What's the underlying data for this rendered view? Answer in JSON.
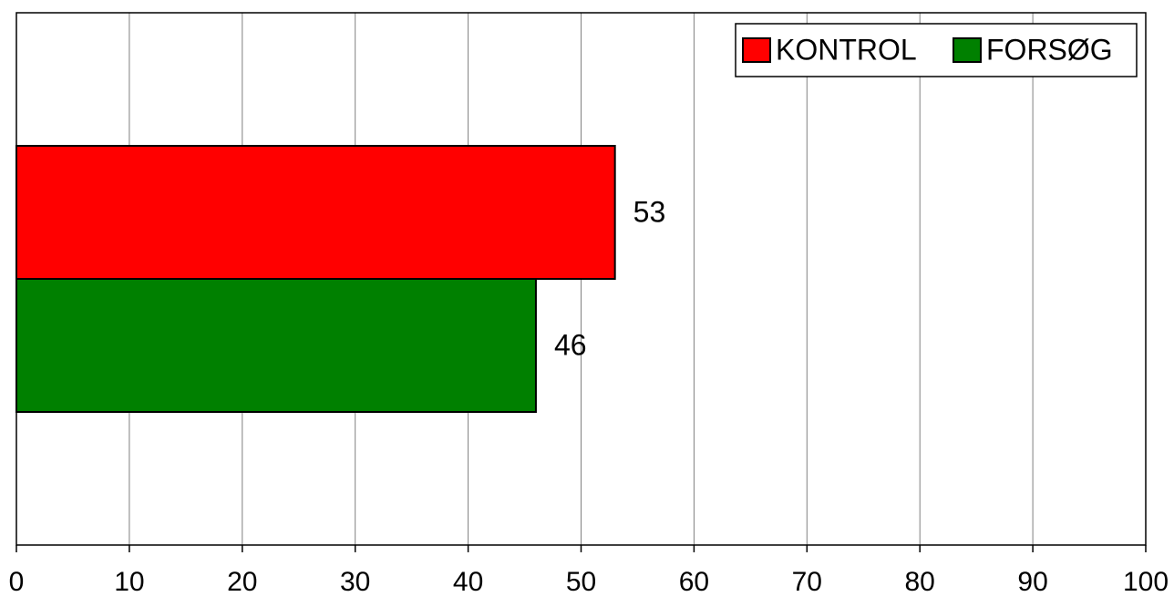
{
  "chart_data": {
    "type": "hbar",
    "categories": [
      null
    ],
    "series": [
      {
        "name": "KONTROL",
        "color": "#ff0000",
        "values": [
          53
        ]
      },
      {
        "name": "FORSØG",
        "color": "#008000",
        "values": [
          46
        ]
      }
    ],
    "xlim": [
      0,
      100
    ],
    "xticks": [
      0,
      10,
      20,
      30,
      40,
      50,
      60,
      70,
      80,
      90,
      100
    ],
    "grid": true,
    "legend": "upper right"
  }
}
